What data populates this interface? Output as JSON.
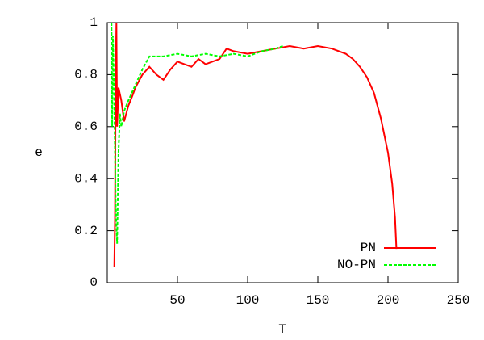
{
  "chart_data": {
    "type": "line",
    "x_label": "T",
    "y_label": "e",
    "xlim": [
      0,
      250
    ],
    "xticks": [
      50,
      100,
      150,
      200,
      250
    ],
    "ylim": [
      0,
      1
    ],
    "yticks": [
      0,
      0.2,
      0.4,
      0.6,
      0.8,
      1
    ],
    "legend": "lower right",
    "series": [
      {
        "name": "PN",
        "color": "#ff0000",
        "dashed": false,
        "x": [
          5,
          5.5,
          6,
          6.5,
          7,
          8,
          10,
          12,
          15,
          18,
          20,
          25,
          30,
          35,
          40,
          45,
          50,
          55,
          60,
          65,
          70,
          80,
          85,
          90,
          100,
          110,
          120,
          130,
          140,
          150,
          160,
          170,
          175,
          180,
          185,
          190,
          195,
          200,
          203,
          205,
          206
        ],
        "values": [
          0.06,
          0.25,
          0.8,
          1.0,
          0.6,
          0.75,
          0.7,
          0.62,
          0.68,
          0.72,
          0.75,
          0.8,
          0.83,
          0.8,
          0.78,
          0.82,
          0.85,
          0.84,
          0.83,
          0.86,
          0.84,
          0.86,
          0.9,
          0.89,
          0.88,
          0.89,
          0.9,
          0.91,
          0.9,
          0.91,
          0.9,
          0.88,
          0.86,
          0.83,
          0.79,
          0.73,
          0.63,
          0.5,
          0.38,
          0.25,
          0.13
        ]
      },
      {
        "name": "NO-PN",
        "color": "#00ff00",
        "dashed": true,
        "x": [
          3,
          3.5,
          4,
          5,
          6,
          7,
          8,
          9,
          10,
          12,
          15,
          20,
          25,
          30,
          40,
          50,
          60,
          70,
          80,
          90,
          100,
          110,
          120,
          125
        ],
        "values": [
          1.0,
          0.6,
          0.95,
          0.7,
          0.3,
          0.15,
          0.5,
          0.65,
          0.6,
          0.66,
          0.7,
          0.76,
          0.82,
          0.87,
          0.87,
          0.88,
          0.87,
          0.88,
          0.87,
          0.88,
          0.87,
          0.89,
          0.9,
          0.91
        ]
      }
    ]
  }
}
